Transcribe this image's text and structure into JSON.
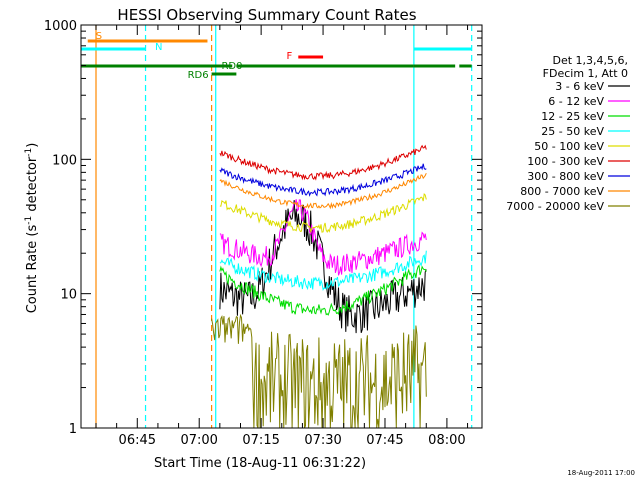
{
  "chart_data": {
    "type": "line",
    "title": "HESSI Observing Summary Count Rates",
    "xlabel": "Start Time (18-Aug-11 06:31:22)",
    "ylabel_main": "Count Rate (s",
    "ylabel_sup1": "-1",
    "ylabel_mid": " detector",
    "ylabel_sup2": "-1",
    "ylabel_end": ")",
    "yscale": "log",
    "ylim": [
      1,
      1000
    ],
    "xlim": [
      "06:31:22",
      "08:08:30"
    ],
    "yticks": [
      {
        "value": 1,
        "label": "1"
      },
      {
        "value": 10,
        "label": "10"
      },
      {
        "value": 100,
        "label": "100"
      },
      {
        "value": 1000,
        "label": "1000"
      }
    ],
    "xticks": [
      {
        "time": "06:45",
        "label": "06:45"
      },
      {
        "time": "07:00",
        "label": "07:00"
      },
      {
        "time": "07:15",
        "label": "07:15"
      },
      {
        "time": "07:30",
        "label": "07:30"
      },
      {
        "time": "07:45",
        "label": "07:45"
      },
      {
        "time": "08:00",
        "label": "08:00"
      }
    ],
    "legend": {
      "placement": "right",
      "header": [
        "Det 1,3,4,5,6,",
        "FDecim 1, Att 0"
      ]
    },
    "series": [
      {
        "name": "3 - 6 keV",
        "color": "#000000"
      },
      {
        "name": "6 - 12 keV",
        "color": "#ff00ff"
      },
      {
        "name": "12 - 25 keV",
        "color": "#00dd00"
      },
      {
        "name": "25 - 50 keV",
        "color": "#00ffff"
      },
      {
        "name": "50 - 100 keV",
        "color": "#dddd00"
      },
      {
        "name": "100 - 300 keV",
        "color": "#dd0000"
      },
      {
        "name": "300 - 800 keV",
        "color": "#0000dd"
      },
      {
        "name": "800 - 7000 keV",
        "color": "#ff8800"
      },
      {
        "name": "7000 - 20000 keV",
        "color": "#808000"
      }
    ],
    "flags": [
      {
        "label": "S",
        "color": "#ff8800",
        "start": "06:33",
        "end": "07:02"
      },
      {
        "label": "N",
        "color": "#00ffff",
        "start": "06:31:22",
        "end": "06:47"
      },
      {
        "label": "N",
        "color": "#00ffff",
        "start": "07:52",
        "end": "08:06"
      },
      {
        "label": "RD0",
        "color": "#008000",
        "start": "06:31:22",
        "end": "07:08"
      },
      {
        "label": "RD0",
        "color": "#008000",
        "start": "07:09",
        "end": "07:52"
      },
      {
        "label": "RD0",
        "color": "#008000",
        "start": "07:52",
        "end": "08:02"
      },
      {
        "label": "RD0",
        "color": "#008000",
        "start": "08:03",
        "end": "08:06"
      },
      {
        "label": "RD6",
        "color": "#008000",
        "start": "07:03",
        "end": "07:09"
      },
      {
        "label": "F",
        "color": "#ff0000",
        "start": "07:24",
        "end": "07:30"
      }
    ],
    "vlines": [
      {
        "time": "06:35",
        "color": "#ff8800",
        "dashed": false
      },
      {
        "time": "06:47",
        "color": "#00ffff",
        "dashed": true
      },
      {
        "time": "07:03",
        "color": "#ff8800",
        "dashed": true
      },
      {
        "time": "07:04",
        "color": "#00ffff",
        "dashed": false
      },
      {
        "time": "07:52",
        "color": "#00ffff",
        "dashed": false
      },
      {
        "time": "08:06",
        "color": "#00ffff",
        "dashed": true
      }
    ],
    "footer_date": "18-Aug-2011 17:00"
  }
}
